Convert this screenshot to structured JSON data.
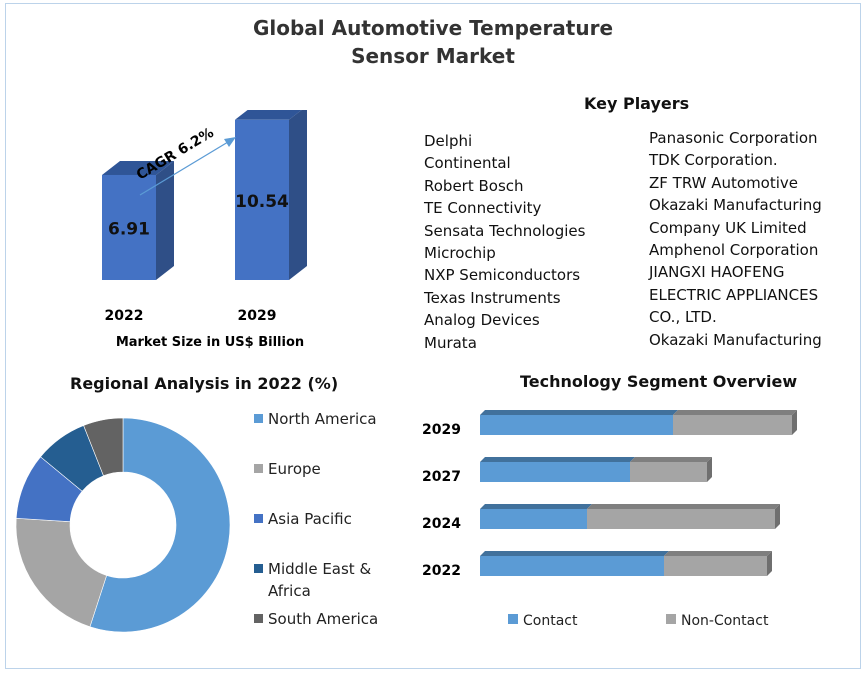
{
  "title_line1": "Global Automotive Temperature",
  "title_line2": "Sensor Market",
  "colors": {
    "bar_front": "#4472c4",
    "bar_side": "#2f4f87",
    "bar_top": "#2f5597",
    "arrow": "#5b9bd5",
    "contact": "#5b9bd5",
    "non_contact": "#a5a5a5"
  },
  "chart_data": [
    {
      "type": "bar",
      "title": "",
      "xlabel": "Market Size in US$ Billion",
      "categories": [
        "2022",
        "2029"
      ],
      "values": [
        6.91,
        10.54
      ],
      "annotation": "CAGR 6.2%"
    },
    {
      "type": "pie",
      "title": "Regional Analysis in 2022 (%)",
      "donut": true,
      "legend": "right",
      "categories": [
        "North America",
        "Europe",
        "Asia Pacific",
        "Middle East & Africa",
        "South America"
      ],
      "legend_lines": [
        [
          "North America"
        ],
        [
          "Europe"
        ],
        [
          "Asia Pacific"
        ],
        [
          "Middle East &",
          "Africa"
        ],
        [
          "South America"
        ]
      ],
      "values": [
        55,
        21,
        10,
        8,
        6
      ],
      "colors": [
        "#5b9bd5",
        "#a5a5a5",
        "#4472c4",
        "#255e91",
        "#636363"
      ]
    },
    {
      "type": "bar",
      "orientation": "horizontal",
      "stacked": true,
      "title": "Technology Segment Overview",
      "legend": "bottom",
      "categories": [
        "2029",
        "2027",
        "2024",
        "2022"
      ],
      "series": [
        {
          "name": "Contact",
          "values": [
            193,
            150,
            107,
            184
          ]
        },
        {
          "name": "Non-Contact",
          "values": [
            119,
            77,
            188,
            103
          ]
        }
      ]
    }
  ],
  "key_players": {
    "title": "Key Players",
    "col1": [
      "Delphi",
      "Continental",
      "Robert Bosch",
      "TE Connectivity",
      "Sensata Technologies",
      "Microchip",
      "NXP Semiconductors",
      "Texas Instruments",
      "Analog Devices",
      "Murata"
    ],
    "col2": [
      "Panasonic Corporation",
      "TDK Corporation.",
      "ZF TRW Automotive",
      "Okazaki Manufacturing",
      "Company UK Limited",
      "Amphenol  Corporation",
      "JIANGXI HAOFENG",
      "ELECTRIC APPLIANCES",
      "CO., LTD.",
      "Okazaki Manufacturing"
    ]
  }
}
